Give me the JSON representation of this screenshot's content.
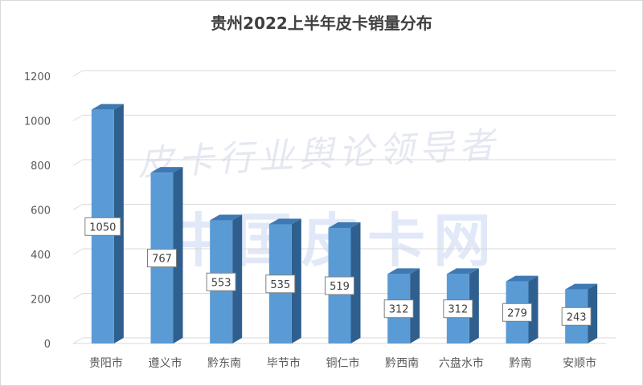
{
  "watermark": {
    "line1": "皮卡行业舆论领导者",
    "line2": "中国皮卡网"
  },
  "chart_data": {
    "type": "bar",
    "title": "贵州2022上半年皮卡销量分布",
    "xlabel": "",
    "ylabel": "",
    "ylim": [
      0,
      1200
    ],
    "yticks": [
      0,
      200,
      400,
      600,
      800,
      1000,
      1200
    ],
    "grid": true,
    "legend": "none",
    "categories": [
      "贵阳市",
      "遵义市",
      "黔东南",
      "毕节市",
      "铜仁市",
      "黔西南",
      "六盘水市",
      "黔南",
      "安顺市"
    ],
    "values": [
      1050,
      767,
      553,
      535,
      519,
      312,
      312,
      279,
      243
    ],
    "data_labels": [
      "1050",
      "767",
      "553",
      "535",
      "519",
      "312",
      "312",
      "279",
      "243"
    ],
    "colors": {
      "bar_front": "#5b9bd5",
      "bar_side": "#2e5f8e",
      "bar_top": "#3f79b3",
      "grid": "#d9d9d9",
      "axis_text": "#595959"
    }
  }
}
